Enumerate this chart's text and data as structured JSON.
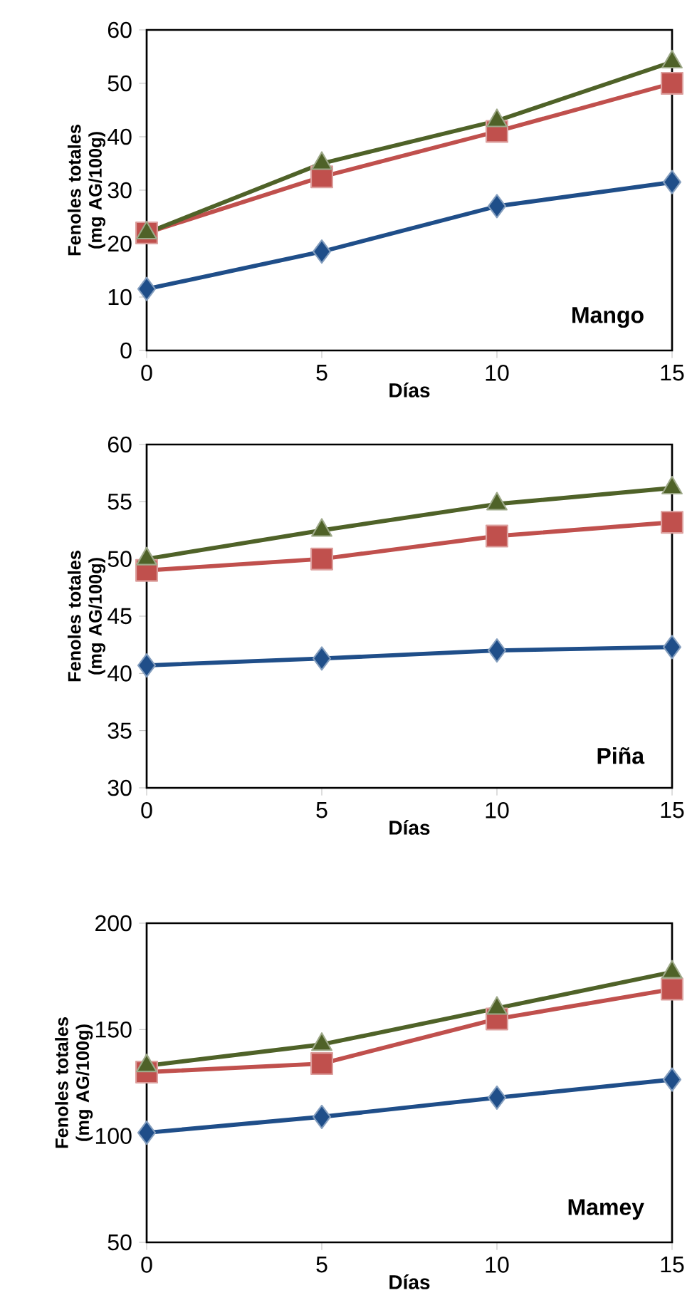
{
  "chart_data": [
    {
      "type": "line",
      "xlabel": "Días",
      "ylabel": "Fenoles totales (mg AG/100g)",
      "annotations": [
        "Mango"
      ],
      "x": [
        0,
        5,
        10,
        15
      ],
      "xlim": [
        0,
        15
      ],
      "xticks": [
        0,
        5,
        10,
        15
      ],
      "ylim": [
        0,
        60
      ],
      "yticks": [
        0,
        10,
        20,
        30,
        40,
        50,
        60
      ],
      "line_style": "solid",
      "series": [
        {
          "color": "#1f4e89",
          "marker": "diamond",
          "values": [
            11.5,
            18.5,
            27,
            31.5
          ]
        },
        {
          "color": "#c0504d",
          "marker": "square",
          "values": [
            22,
            32.5,
            41,
            50
          ]
        },
        {
          "color": "#4f6228",
          "marker": "triangle",
          "values": [
            22,
            35,
            43,
            54
          ]
        }
      ]
    },
    {
      "type": "line",
      "xlabel": "Días",
      "ylabel": "Fenoles totales (mg AG/100g)",
      "annotations": [
        "Piña"
      ],
      "x": [
        0,
        5,
        10,
        15
      ],
      "xlim": [
        0,
        15
      ],
      "xticks": [
        0,
        5,
        10,
        15
      ],
      "ylim": [
        30,
        60
      ],
      "yticks": [
        30,
        35,
        40,
        45,
        50,
        55,
        60
      ],
      "line_style": "solid",
      "series": [
        {
          "color": "#1f4e89",
          "marker": "diamond",
          "values": [
            40.7,
            41.3,
            42,
            42.3
          ]
        },
        {
          "color": "#c0504d",
          "marker": "square",
          "values": [
            49,
            50,
            52,
            53.2
          ]
        },
        {
          "color": "#4f6228",
          "marker": "triangle",
          "values": [
            50,
            52.5,
            54.8,
            56.2
          ]
        }
      ]
    },
    {
      "type": "line",
      "xlabel": "Días",
      "ylabel": "Fenoles totales (mg AG/100g)",
      "annotations": [
        "Mamey"
      ],
      "x": [
        0,
        5,
        10,
        15
      ],
      "xlim": [
        0,
        15
      ],
      "xticks": [
        0,
        5,
        10,
        15
      ],
      "ylim": [
        50,
        200
      ],
      "yticks": [
        50,
        100,
        150,
        200
      ],
      "line_style": "solid",
      "series": [
        {
          "color": "#1f4e89",
          "marker": "diamond",
          "values": [
            101.5,
            109,
            118,
            126.5
          ]
        },
        {
          "color": "#c0504d",
          "marker": "square",
          "values": [
            130,
            134,
            155,
            169
          ]
        },
        {
          "color": "#4f6228",
          "marker": "triangle",
          "values": [
            133,
            143,
            160,
            177
          ]
        }
      ]
    }
  ]
}
